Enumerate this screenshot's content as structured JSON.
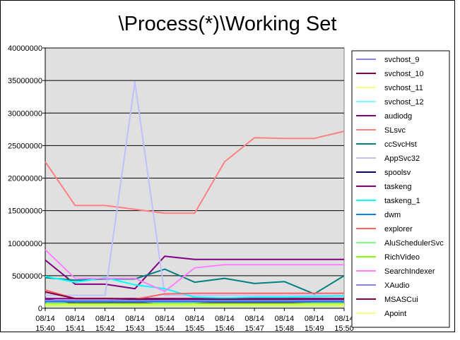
{
  "chart_data": {
    "type": "line",
    "title": "\\Process(*)\\Working Set",
    "xlabel": "",
    "ylabel": "",
    "ylim": [
      0,
      40000000
    ],
    "y_ticks": [
      "0",
      "5000000",
      "10000000",
      "15000000",
      "20000000",
      "25000000",
      "30000000",
      "35000000",
      "40000000"
    ],
    "y_tick_values": [
      0,
      5000000,
      10000000,
      15000000,
      20000000,
      25000000,
      30000000,
      35000000,
      40000000
    ],
    "x_categories": [
      [
        "08/14",
        "15:40"
      ],
      [
        "08/14",
        "15:41"
      ],
      [
        "08/14",
        "15:42"
      ],
      [
        "08/14",
        "15:43"
      ],
      [
        "08/14",
        "15:44"
      ],
      [
        "08/14",
        "15:45"
      ],
      [
        "08/14",
        "15:46"
      ],
      [
        "08/14",
        "15:47"
      ],
      [
        "08/14",
        "15:48"
      ],
      [
        "08/14",
        "15:49"
      ],
      [
        "08/14",
        "15:50"
      ]
    ],
    "grid": true,
    "legend_position": "right",
    "plot_background": "#e0e0e0",
    "series": [
      {
        "name": "svchost_9",
        "color": "#8080ff",
        "values": [
          300000,
          300000,
          300000,
          300000,
          300000,
          300000,
          300000,
          300000,
          300000,
          300000,
          300000
        ]
      },
      {
        "name": "svchost_10",
        "color": "#800040",
        "values": [
          1400000,
          800000,
          800000,
          900000,
          600000,
          700000,
          900000,
          900000,
          900000,
          1000000,
          1000000
        ]
      },
      {
        "name": "svchost_11",
        "color": "#ffff80",
        "values": [
          300000,
          300000,
          300000,
          300000,
          300000,
          300000,
          300000,
          300000,
          300000,
          300000,
          300000
        ]
      },
      {
        "name": "svchost_12",
        "color": "#80ffff",
        "values": [
          600000,
          600000,
          600000,
          600000,
          600000,
          600000,
          600000,
          600000,
          600000,
          600000,
          600000
        ]
      },
      {
        "name": "audiodg",
        "color": "#800080",
        "values": [
          7400000,
          3700000,
          3700000,
          3000000,
          8000000,
          7500000,
          7500000,
          7500000,
          7500000,
          7500000,
          7500000
        ]
      },
      {
        "name": "SLsvc",
        "color": "#ff8080",
        "values": [
          22500000,
          15800000,
          15800000,
          15200000,
          14600000,
          14600000,
          22500000,
          26200000,
          26100000,
          26100000,
          27200000
        ]
      },
      {
        "name": "ccSvcHst",
        "color": "#008080",
        "values": [
          4700000,
          4300000,
          4500000,
          4500000,
          6000000,
          4000000,
          4600000,
          3800000,
          4100000,
          2200000,
          5000000
        ]
      },
      {
        "name": "AppSvc32",
        "color": "#c0c0ff",
        "values": [
          2000000,
          2000000,
          2000000,
          34800000,
          2000000,
          2000000,
          2000000,
          2000000,
          2000000,
          2000000,
          2000000
        ]
      },
      {
        "name": "spoolsv",
        "color": "#000080",
        "values": [
          600000,
          600000,
          600000,
          600000,
          600000,
          600000,
          600000,
          600000,
          600000,
          600000,
          600000
        ]
      },
      {
        "name": "taskeng",
        "color": "#800080",
        "values": [
          1500000,
          1500000,
          1500000,
          1500000,
          1500000,
          1500000,
          1500000,
          1500000,
          1500000,
          1500000,
          1500000
        ]
      },
      {
        "name": "taskeng_1",
        "color": "#00ffff",
        "values": [
          4900000,
          4000000,
          4700000,
          3600000,
          3000000,
          1700000,
          1600000,
          1700000,
          1700000,
          1800000,
          1900000
        ]
      },
      {
        "name": "dwm",
        "color": "#0080ff",
        "values": [
          1000000,
          1000000,
          1000000,
          1000000,
          1000000,
          1000000,
          1000000,
          1000000,
          1000000,
          1000000,
          1000000
        ]
      },
      {
        "name": "explorer",
        "color": "#ff6060",
        "values": [
          2800000,
          1500000,
          1500000,
          1400000,
          2200000,
          2300000,
          2300000,
          2300000,
          2300000,
          2300000,
          2300000
        ]
      },
      {
        "name": "AluSchedulerSvc",
        "color": "#80ff80",
        "values": [
          400000,
          400000,
          400000,
          400000,
          400000,
          400000,
          400000,
          400000,
          400000,
          400000,
          400000
        ]
      },
      {
        "name": "RichVideo",
        "color": "#80ff00",
        "values": [
          700000,
          700000,
          700000,
          700000,
          700000,
          700000,
          700000,
          700000,
          700000,
          700000,
          700000
        ]
      },
      {
        "name": "SearchIndexer",
        "color": "#ff80ff",
        "values": [
          9000000,
          4600000,
          4600000,
          4600000,
          2600000,
          6200000,
          6700000,
          6700000,
          6700000,
          6700000,
          6700000
        ]
      },
      {
        "name": "XAudio",
        "color": "#8080ff",
        "values": [
          1200000,
          1200000,
          1200000,
          1200000,
          1200000,
          1200000,
          1200000,
          1200000,
          1200000,
          1200000,
          1200000
        ]
      },
      {
        "name": "MSASCui",
        "color": "#800040",
        "values": [
          2500000,
          1500000,
          1500000,
          1400000,
          1400000,
          1400000,
          1400000,
          1400000,
          1400000,
          1400000,
          1400000
        ]
      },
      {
        "name": "Apoint",
        "color": "#ffff80",
        "values": [
          500000,
          500000,
          500000,
          500000,
          500000,
          500000,
          500000,
          500000,
          500000,
          500000,
          500000
        ]
      }
    ]
  }
}
